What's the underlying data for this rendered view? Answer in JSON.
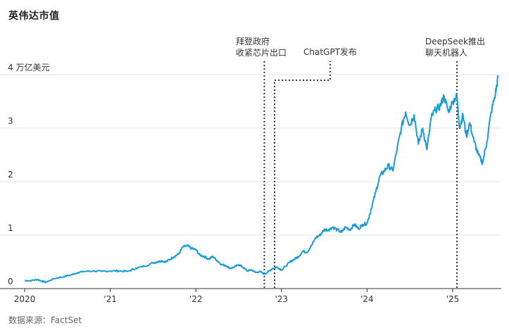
{
  "chart_data": {
    "type": "line",
    "title": "英伟达市值",
    "source": "数据来源：FactSet",
    "y_unit_label": "4 万亿美元",
    "y_ticks": [
      {
        "value": 0,
        "label": "0"
      },
      {
        "value": 1,
        "label": "1"
      },
      {
        "value": 2,
        "label": "2"
      },
      {
        "value": 3,
        "label": "3"
      },
      {
        "value": 4,
        "label": "4 万亿美元"
      }
    ],
    "x_ticks": [
      {
        "value": 2020,
        "label": "2020"
      },
      {
        "value": 2021,
        "label": "'21"
      },
      {
        "value": 2022,
        "label": "'22"
      },
      {
        "value": 2023,
        "label": "'23"
      },
      {
        "value": 2024,
        "label": "'24"
      },
      {
        "value": 2025,
        "label": "'25"
      }
    ],
    "xlim": [
      2020,
      2025.55
    ],
    "ylim": [
      0,
      4.1
    ],
    "grid": true,
    "series_color": "#1a9ad6",
    "annotations": [
      {
        "x": 2022.8,
        "lines": [
          "拜登政府",
          "收紧芯片出口"
        ]
      },
      {
        "x": 2022.92,
        "lines": [
          "ChatGPT发布"
        ]
      },
      {
        "x": 2025.05,
        "lines": [
          "DeepSeek推出",
          "聊天机器人"
        ]
      }
    ],
    "x": [
      2020.0,
      2020.08,
      2020.15,
      2020.2,
      2020.25,
      2020.35,
      2020.45,
      2020.55,
      2020.62,
      2020.7,
      2020.8,
      2020.9,
      2021.0,
      2021.1,
      2021.2,
      2021.3,
      2021.4,
      2021.5,
      2021.55,
      2021.6,
      2021.65,
      2021.7,
      2021.75,
      2021.8,
      2021.85,
      2021.9,
      2021.95,
      2022.0,
      2022.05,
      2022.1,
      2022.15,
      2022.2,
      2022.25,
      2022.3,
      2022.35,
      2022.4,
      2022.45,
      2022.5,
      2022.55,
      2022.6,
      2022.65,
      2022.7,
      2022.75,
      2022.8,
      2022.85,
      2022.9,
      2022.95,
      2023.0,
      2023.05,
      2023.1,
      2023.15,
      2023.2,
      2023.25,
      2023.3,
      2023.35,
      2023.4,
      2023.45,
      2023.5,
      2023.55,
      2023.6,
      2023.65,
      2023.7,
      2023.75,
      2023.8,
      2023.85,
      2023.9,
      2023.95,
      2024.0,
      2024.05,
      2024.1,
      2024.15,
      2024.2,
      2024.25,
      2024.3,
      2024.35,
      2024.4,
      2024.45,
      2024.5,
      2024.55,
      2024.6,
      2024.65,
      2024.7,
      2024.75,
      2024.8,
      2024.85,
      2024.9,
      2024.95,
      2025.0,
      2025.05,
      2025.08,
      2025.12,
      2025.16,
      2025.2,
      2025.25,
      2025.3,
      2025.35,
      2025.4,
      2025.45,
      2025.5,
      2025.53
    ],
    "values": [
      0.15,
      0.15,
      0.17,
      0.14,
      0.12,
      0.19,
      0.22,
      0.26,
      0.3,
      0.32,
      0.33,
      0.32,
      0.33,
      0.33,
      0.32,
      0.38,
      0.42,
      0.48,
      0.5,
      0.52,
      0.5,
      0.55,
      0.6,
      0.65,
      0.78,
      0.8,
      0.75,
      0.73,
      0.62,
      0.6,
      0.55,
      0.6,
      0.52,
      0.45,
      0.43,
      0.38,
      0.4,
      0.45,
      0.4,
      0.33,
      0.35,
      0.3,
      0.32,
      0.27,
      0.32,
      0.38,
      0.4,
      0.35,
      0.42,
      0.5,
      0.55,
      0.6,
      0.7,
      0.68,
      0.8,
      0.95,
      1.0,
      1.1,
      1.1,
      1.15,
      1.1,
      1.05,
      1.15,
      1.1,
      1.2,
      1.12,
      1.2,
      1.22,
      1.5,
      1.8,
      2.1,
      2.2,
      2.3,
      2.2,
      2.6,
      3.0,
      3.3,
      3.05,
      3.25,
      2.7,
      3.0,
      2.6,
      3.2,
      3.35,
      3.4,
      3.6,
      3.3,
      3.5,
      3.6,
      3.0,
      3.25,
      2.85,
      3.1,
      2.75,
      2.5,
      2.35,
      2.75,
      3.3,
      3.65,
      3.95
    ]
  }
}
